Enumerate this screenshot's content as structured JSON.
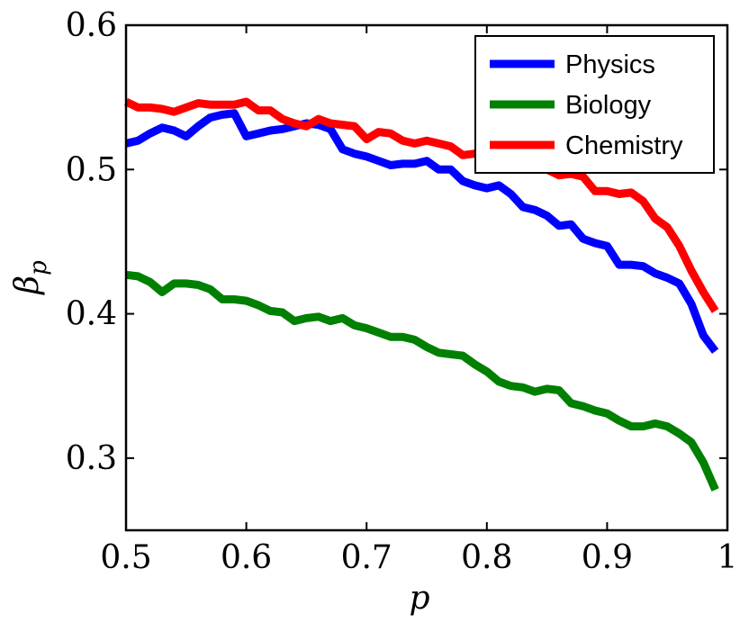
{
  "chart_data": {
    "type": "line",
    "title": "",
    "xlabel": "p",
    "ylabel": "β",
    "ylabel_subscript": "p",
    "xlim": [
      0.5,
      1.0
    ],
    "ylim": [
      0.25,
      0.6
    ],
    "xticks": [
      0.5,
      0.6,
      0.7,
      0.8,
      0.9,
      1.0
    ],
    "xtick_labels": [
      "0.5",
      "0.6",
      "0.7",
      "0.8",
      "0.9",
      "1"
    ],
    "yticks": [
      0.3,
      0.4,
      0.5,
      0.6
    ],
    "ytick_labels": [
      "0.3",
      "0.4",
      "0.5",
      "0.6"
    ],
    "grid": false,
    "legend_position": "top-right",
    "x": [
      0.5,
      0.51,
      0.52,
      0.53,
      0.54,
      0.55,
      0.56,
      0.57,
      0.58,
      0.59,
      0.6,
      0.61,
      0.62,
      0.63,
      0.64,
      0.65,
      0.66,
      0.67,
      0.68,
      0.69,
      0.7,
      0.71,
      0.72,
      0.73,
      0.74,
      0.75,
      0.76,
      0.77,
      0.78,
      0.79,
      0.8,
      0.81,
      0.82,
      0.83,
      0.84,
      0.85,
      0.86,
      0.87,
      0.88,
      0.89,
      0.9,
      0.91,
      0.92,
      0.93,
      0.94,
      0.95,
      0.96,
      0.97,
      0.98,
      0.99
    ],
    "series": [
      {
        "name": "Physics",
        "color": "#0000ff",
        "values": [
          0.518,
          0.52,
          0.525,
          0.529,
          0.527,
          0.523,
          0.53,
          0.536,
          0.538,
          0.539,
          0.523,
          0.525,
          0.527,
          0.528,
          0.53,
          0.532,
          0.531,
          0.528,
          0.514,
          0.511,
          0.509,
          0.506,
          0.503,
          0.504,
          0.504,
          0.506,
          0.5,
          0.5,
          0.492,
          0.489,
          0.487,
          0.489,
          0.483,
          0.474,
          0.472,
          0.468,
          0.461,
          0.462,
          0.452,
          0.449,
          0.447,
          0.434,
          0.434,
          0.433,
          0.428,
          0.425,
          0.421,
          0.407,
          0.385,
          0.374
        ]
      },
      {
        "name": "Biology",
        "color": "#008000",
        "values": [
          0.427,
          0.426,
          0.422,
          0.415,
          0.421,
          0.421,
          0.42,
          0.417,
          0.41,
          0.41,
          0.409,
          0.406,
          0.402,
          0.401,
          0.395,
          0.397,
          0.398,
          0.395,
          0.397,
          0.392,
          0.39,
          0.387,
          0.384,
          0.384,
          0.382,
          0.377,
          0.373,
          0.372,
          0.371,
          0.365,
          0.36,
          0.353,
          0.35,
          0.349,
          0.346,
          0.348,
          0.347,
          0.338,
          0.336,
          0.333,
          0.331,
          0.326,
          0.322,
          0.322,
          0.324,
          0.322,
          0.317,
          0.311,
          0.297,
          0.278
        ]
      },
      {
        "name": "Chemistry",
        "color": "#ff0000",
        "values": [
          0.547,
          0.543,
          0.543,
          0.542,
          0.54,
          0.543,
          0.546,
          0.545,
          0.545,
          0.545,
          0.547,
          0.541,
          0.541,
          0.535,
          0.532,
          0.53,
          0.535,
          0.532,
          0.531,
          0.53,
          0.521,
          0.526,
          0.525,
          0.52,
          0.518,
          0.52,
          0.518,
          0.516,
          0.51,
          0.511,
          0.511,
          0.51,
          0.508,
          0.506,
          0.502,
          0.5,
          0.496,
          0.497,
          0.495,
          0.485,
          0.485,
          0.483,
          0.484,
          0.478,
          0.466,
          0.46,
          0.447,
          0.43,
          0.415,
          0.402
        ]
      }
    ]
  }
}
